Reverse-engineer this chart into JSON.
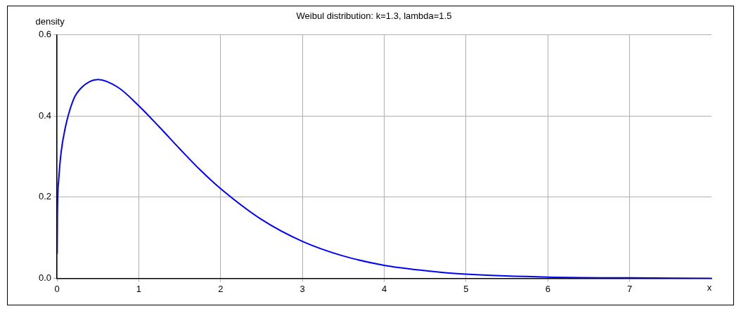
{
  "chart_data": {
    "type": "line",
    "title": "Weibul distribution: k=1.3, lambda=1.5",
    "xlabel": "x",
    "ylabel": "density",
    "series": [
      {
        "color": "#0000ff",
        "x": [
          0.002,
          0.005,
          0.02,
          0.05,
          0.1,
          0.2,
          0.3,
          0.5,
          0.75,
          1,
          1.25,
          1.5,
          1.75,
          2,
          2.5,
          3,
          3.5,
          4,
          4.5,
          5,
          6,
          7,
          8
        ],
        "values": [
          0.06,
          0.16,
          0.24,
          0.31,
          0.37,
          0.44,
          0.47,
          0.49,
          0.47,
          0.425,
          0.373,
          0.319,
          0.267,
          0.221,
          0.145,
          0.091,
          0.055,
          0.032,
          0.019,
          0.01,
          0.003,
          0.001,
          0.0
        ]
      }
    ],
    "xlim": [
      0,
      8
    ],
    "ylim": [
      0,
      0.6
    ],
    "xticks": [
      0,
      1,
      2,
      3,
      4,
      5,
      6,
      7
    ],
    "yticks": [
      {
        "value": 0,
        "label": "0.0"
      },
      {
        "value": 0.2,
        "label": "0.2"
      },
      {
        "value": 0.4,
        "label": "0.4"
      },
      {
        "value": 0.6,
        "label": "0.6"
      }
    ],
    "grid": true,
    "legend": false,
    "marker": "none",
    "line_style": "solid"
  }
}
